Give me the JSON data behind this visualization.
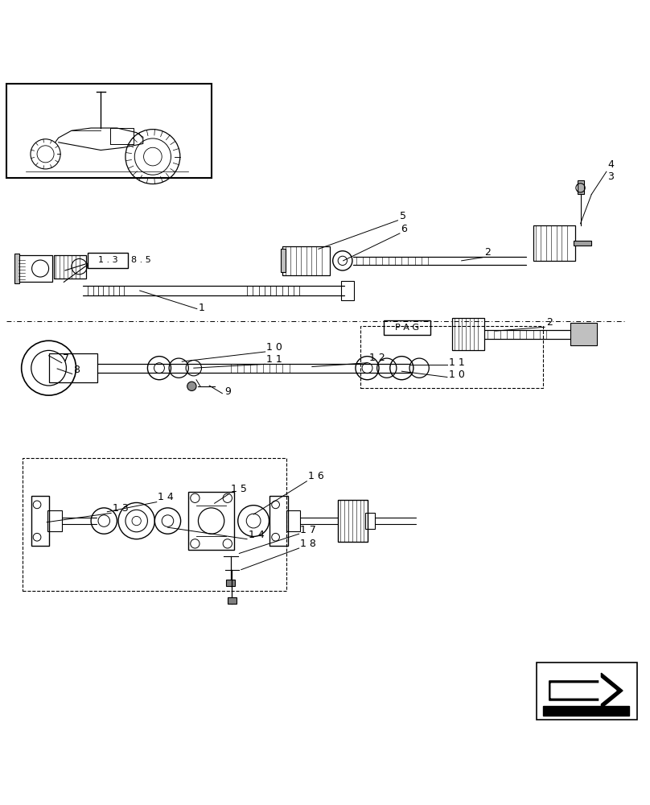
{
  "bg_color": "#ffffff",
  "line_color": "#000000",
  "figsize": [
    8.08,
    10.0
  ],
  "dpi": 100,
  "label_138_text": "1 . 3",
  "label_85_text": "8 . 5"
}
